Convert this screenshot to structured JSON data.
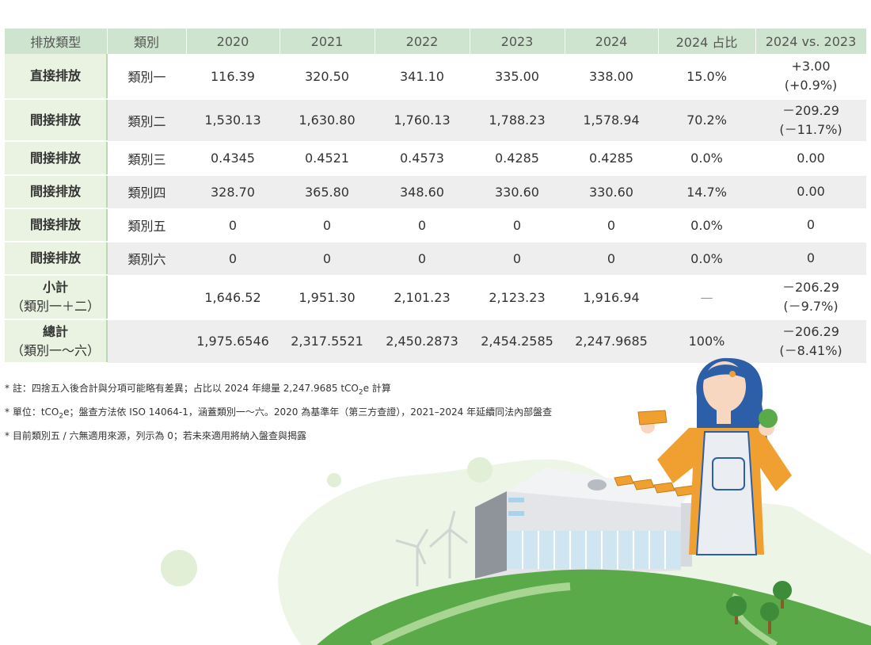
{
  "table": {
    "headers": [
      "排放類型",
      "類別",
      "2020",
      "2021",
      "2022",
      "2023",
      "2024",
      "2024 占比",
      "2024 vs. 2023"
    ],
    "rows": [
      {
        "type": "直接排放",
        "category": "類別一",
        "v2020": "116.39",
        "v2021": "320.50",
        "v2022": "341.10",
        "v2023": "335.00",
        "v2024": "338.00",
        "share": "15.0%",
        "change": "+3.00",
        "change_pct": "(+0.9%)"
      },
      {
        "type": "間接排放",
        "category": "類別二",
        "v2020": "1,530.13",
        "v2021": "1,630.80",
        "v2022": "1,760.13",
        "v2023": "1,788.23",
        "v2024": "1,578.94",
        "share": "70.2%",
        "change": "－209.29",
        "change_pct": "(－11.7%)"
      },
      {
        "type": "間接排放",
        "category": "類別三",
        "v2020": "0.4345",
        "v2021": "0.4521",
        "v2022": "0.4573",
        "v2023": "0.4285",
        "v2024": "0.4285",
        "share": "0.0%",
        "change": "0.00",
        "change_pct": ""
      },
      {
        "type": "間接排放",
        "category": "類別四",
        "v2020": "328.70",
        "v2021": "365.80",
        "v2022": "348.60",
        "v2023": "330.60",
        "v2024": "330.60",
        "share": "14.7%",
        "change": "0.00",
        "change_pct": ""
      },
      {
        "type": "間接排放",
        "category": "類別五",
        "v2020": "0",
        "v2021": "0",
        "v2022": "0",
        "v2023": "0",
        "v2024": "0",
        "share": "0.0%",
        "change": "0",
        "change_pct": ""
      },
      {
        "type": "間接排放",
        "category": "類別六",
        "v2020": "0",
        "v2021": "0",
        "v2022": "0",
        "v2023": "0",
        "v2024": "0",
        "share": "0.0%",
        "change": "0",
        "change_pct": ""
      },
      {
        "type": "小計",
        "type_sub": "（類別一＋二）",
        "category": "",
        "v2020": "1,646.52",
        "v2021": "1,951.30",
        "v2022": "2,101.23",
        "v2023": "2,123.23",
        "v2024": "1,916.94",
        "share": "—",
        "change": "－206.29",
        "change_pct": "(－9.7%)"
      },
      {
        "type": "總計",
        "type_sub": "（類別一～六）",
        "category": "",
        "v2020": "1,975.6546",
        "v2021": "2,317.5521",
        "v2022": "2,450.2873",
        "v2023": "2,454.2585",
        "v2024": "2,247.9685",
        "share": "100%",
        "change": "－206.29",
        "change_pct": "(－8.41%)"
      }
    ]
  },
  "notes": [
    {
      "pre": "* 註：四捨五入後合計與分項可能略有差異；占比以 2024 年總量 2,247.9685 tCO",
      "sub": "2",
      "post": "e 計算"
    },
    {
      "pre": "* 單位：tCO",
      "sub": "2",
      "post": "e；盤查方法依 ISO 14064-1，涵蓋類別一～六。2020 為基準年（第三方查證），2021–2024 年延續同法內部盤查"
    },
    {
      "pre": "* 目前類別五 / 六無適用來源，列示為 0；若未來適用將納入盤查與揭露",
      "sub": "",
      "post": ""
    }
  ],
  "colors": {
    "header_bg": "#cfe4cf",
    "type_bg": "#eaf3e2",
    "stripe": "#eeeeee",
    "hill": "#5aaa4a",
    "hair": "#2d5fa8",
    "shirt": "#f0a030"
  }
}
